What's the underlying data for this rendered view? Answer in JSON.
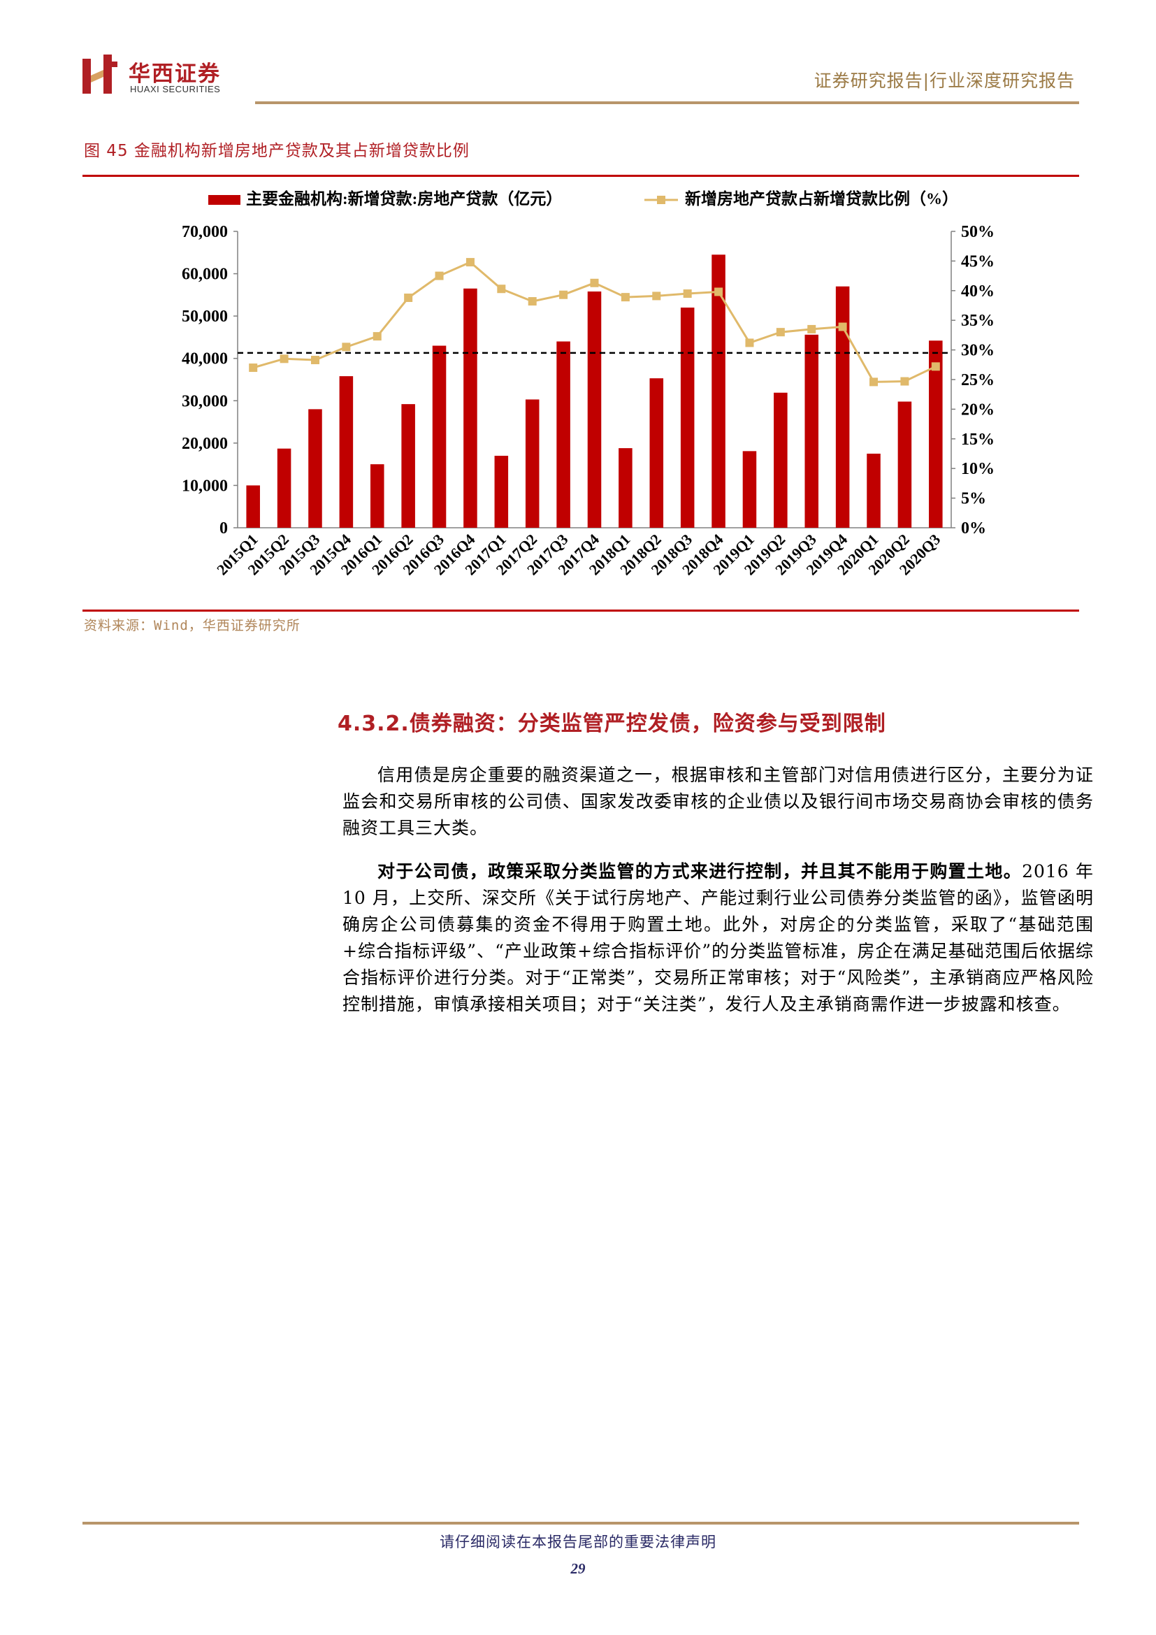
{
  "header": {
    "logo_cn": "华西证券",
    "logo_en": "HUAXI SECURITIES",
    "report_type": "证券研究报告|行业深度研究报告"
  },
  "figure": {
    "title": "图 45  金融机构新增房地产贷款及其占新增贷款比例",
    "source": "资料来源：Wind，华西证券研究所"
  },
  "chart_data": {
    "type": "bar",
    "categories": [
      "2015Q1",
      "2015Q2",
      "2015Q3",
      "2015Q4",
      "2016Q1",
      "2016Q2",
      "2016Q3",
      "2016Q4",
      "2017Q1",
      "2017Q2",
      "2017Q3",
      "2017Q4",
      "2018Q1",
      "2018Q2",
      "2018Q3",
      "2018Q4",
      "2019Q1",
      "2019Q2",
      "2019Q3",
      "2019Q4",
      "2020Q1",
      "2020Q2",
      "2020Q3"
    ],
    "series": [
      {
        "name": "主要金融机构:新增贷款:房地产贷款（亿元）",
        "kind": "bar",
        "axis": "left",
        "color": "#c00000",
        "values": [
          10000,
          18700,
          28000,
          35800,
          15000,
          29200,
          43000,
          56500,
          17000,
          30300,
          44000,
          55800,
          18800,
          35300,
          52000,
          64500,
          18100,
          31900,
          45600,
          57000,
          17500,
          29800,
          44200
        ]
      },
      {
        "name": "新增房地产贷款占新增贷款比例（%）",
        "kind": "line",
        "axis": "right",
        "color": "#e0b96a",
        "values": [
          27.0,
          28.5,
          28.3,
          30.5,
          32.3,
          38.8,
          42.5,
          44.8,
          40.3,
          38.2,
          39.3,
          41.3,
          38.9,
          39.1,
          39.5,
          39.8,
          31.2,
          33.0,
          33.5,
          33.9,
          24.6,
          24.7,
          27.2
        ]
      }
    ],
    "reference_line": {
      "axis": "right",
      "value": 29.5,
      "style": "dashed",
      "color": "#000000"
    },
    "left_axis": {
      "ylim": [
        0,
        70000
      ],
      "ticks": [
        "0",
        "10,000",
        "20,000",
        "30,000",
        "40,000",
        "50,000",
        "60,000",
        "70,000"
      ]
    },
    "right_axis": {
      "ylim": [
        0,
        50
      ],
      "ticks": [
        "0%",
        "5%",
        "10%",
        "15%",
        "20%",
        "25%",
        "30%",
        "35%",
        "40%",
        "45%",
        "50%"
      ]
    },
    "legend_position": "top",
    "grid": false
  },
  "section": {
    "title": "4.3.2.债券融资：分类监管严控发债，险资参与受到限制"
  },
  "paragraphs": {
    "p1": "信用债是房企重要的融资渠道之一，根据审核和主管部门对信用债进行区分，主要分为证监会和交易所审核的公司债、国家发改委审核的企业债以及银行间市场交易商协会审核的债务融资工具三大类。",
    "p2_bold": "对于公司债，政策采取分类监管的方式来进行控制，并且其不能用于购置土地。",
    "p2_rest": "2016 年 10 月，上交所、深交所《关于试行房地产、产能过剩行业公司债券分类监管的函》，监管函明确房企公司债募集的资金不得用于购置土地。此外，对房企的分类监管，采取了“基础范围+综合指标评级”、“产业政策+综合指标评价”的分类监管标准，房企在满足基础范围后依据综合指标评价进行分类。对于“正常类”，交易所正常审核；对于“风险类”，主承销商应严格风险控制措施，审慎承接相关项目；对于“关注类”，发行人及主承销商需作进一步披露和核查。"
  },
  "footer": {
    "note": "请仔细阅读在本报告尾部的重要法律声明",
    "page": "29"
  }
}
